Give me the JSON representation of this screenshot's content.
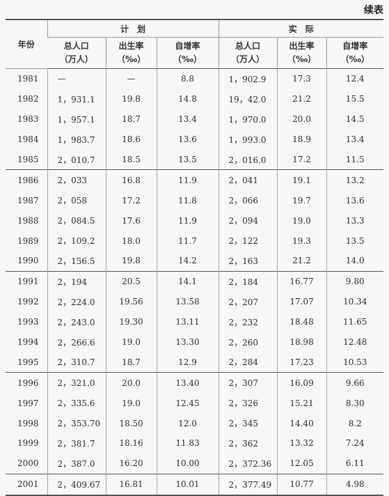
{
  "continued_label": "续表",
  "headers": {
    "year": "年份",
    "plan": "计　划",
    "actual": "实　际",
    "cols": [
      [
        "总人口",
        "（万人）"
      ],
      [
        "出生率",
        "（‰）"
      ],
      [
        "自增率",
        "（‰）"
      ],
      [
        "总人口",
        "（万人）"
      ],
      [
        "出生率",
        "（‰）"
      ],
      [
        "自增率",
        "（‰）"
      ]
    ]
  },
  "rows": [
    [
      "1981",
      "—",
      "—",
      "8.8",
      "1，902.9",
      "17.3",
      "12.4"
    ],
    [
      "1982",
      "1，931.1",
      "19.8",
      "14.8",
      "19，42.0",
      "21.2",
      "15.5"
    ],
    [
      "1983",
      "1，957.1",
      "18.7",
      "13.4",
      "1，970.0",
      "20.0",
      "14.5"
    ],
    [
      "1984",
      "1，983.7",
      "18.6",
      "13.6",
      "1，993.0",
      "18.9",
      "13.4"
    ],
    [
      "1985",
      "2，010.7",
      "18.5",
      "13.5",
      "2，016.0",
      "17.2",
      "11.5"
    ],
    [
      "1986",
      "2，033",
      "16.8",
      "11.9",
      "2，041",
      "19.1",
      "13.2"
    ],
    [
      "1987",
      "2，058",
      "17.2",
      "11.8",
      "2，066",
      "19.7",
      "13.6"
    ],
    [
      "1988",
      "2，084.5",
      "17.6",
      "11.9",
      "2，094",
      "19.0",
      "13.3"
    ],
    [
      "1989",
      "2，109.2",
      "18.0",
      "11.7",
      "2，122",
      "19.3",
      "13.5"
    ],
    [
      "1990",
      "2，156.5",
      "19.8",
      "14.2",
      "2，163",
      "21.2",
      "14.0"
    ],
    [
      "1991",
      "2，194",
      "20.5",
      "14.1",
      "2，184",
      "16.77",
      "9.80"
    ],
    [
      "1992",
      "2，224.0",
      "19.56",
      "13.58",
      "2，207",
      "17.07",
      "10.34"
    ],
    [
      "1993",
      "2，243.0",
      "19.30",
      "13.11",
      "2，232",
      "18.48",
      "11.65"
    ],
    [
      "1994",
      "2，266.6",
      "19.0",
      "13.30",
      "2，260",
      "18.98",
      "12.48"
    ],
    [
      "1995",
      "2，310.7",
      "18.7",
      "12.9",
      "2，284",
      "17.23",
      "10.53"
    ],
    [
      "1996",
      "2，321.0",
      "20.0",
      "13.40",
      "2，307",
      "16.09",
      "9.66"
    ],
    [
      "1997",
      "2，335.6",
      "19.0",
      "12.45",
      "2，326",
      "15.21",
      "8.30"
    ],
    [
      "1998",
      "2，353.70",
      "18.50",
      "12.0",
      "2，345",
      "14.40",
      "8.2"
    ],
    [
      "1999",
      "2，381.7",
      "18.16",
      "11.83",
      "2，362",
      "13.32",
      "7.24"
    ],
    [
      "2000",
      "2，387.0",
      "16.20",
      "10.00",
      "2，372.36",
      "12.05",
      "6.11"
    ],
    [
      "2001",
      "2，409.67",
      "16.81",
      "10.01",
      "2，377.49",
      "10.77",
      "4.98"
    ]
  ]
}
